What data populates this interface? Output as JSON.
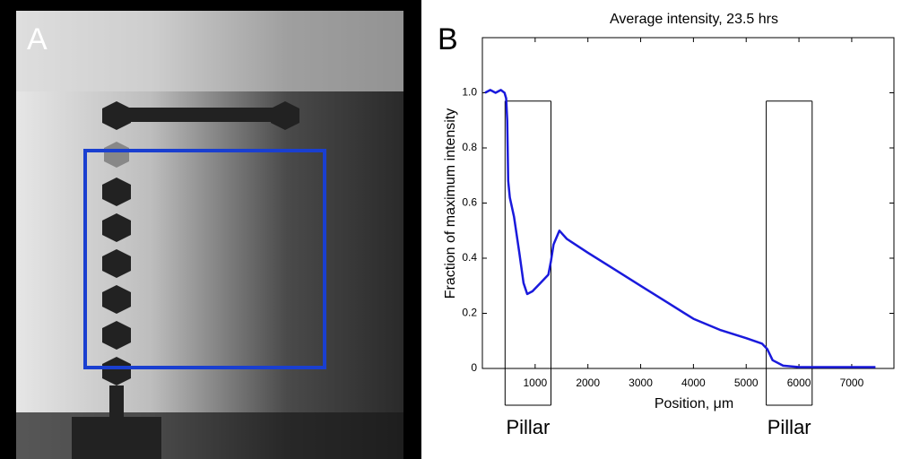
{
  "panel_labels": [
    "A",
    "B"
  ],
  "chart_data": {
    "type": "line",
    "title": "Average intensity, 23.5 hrs",
    "xlabel": "Position, μm",
    "ylabel": "Fraction of maximum intensity",
    "x": [
      50,
      150,
      250,
      350,
      420,
      450,
      470,
      490,
      520,
      600,
      700,
      780,
      850,
      950,
      1100,
      1250,
      1300,
      1350,
      1460,
      1600,
      2000,
      2500,
      3000,
      3500,
      4000,
      4500,
      5000,
      5300,
      5400,
      5500,
      5700,
      6000,
      7000,
      7450
    ],
    "values": [
      1.0,
      1.01,
      1.0,
      1.01,
      1.0,
      0.98,
      0.9,
      0.68,
      0.62,
      0.55,
      0.42,
      0.31,
      0.27,
      0.28,
      0.31,
      0.34,
      0.39,
      0.45,
      0.5,
      0.47,
      0.42,
      0.36,
      0.3,
      0.24,
      0.18,
      0.14,
      0.11,
      0.09,
      0.07,
      0.03,
      0.01,
      0.005,
      0.005,
      0.005
    ],
    "color": "#1a1adc",
    "xlim": [
      0,
      7800
    ],
    "ylim": [
      0,
      1.2
    ],
    "xticks": [
      1000,
      2000,
      3000,
      4000,
      5000,
      6000,
      7000
    ],
    "yticks": [
      0,
      0.2,
      0.4,
      0.6,
      0.8,
      {
        "value": 1,
        "label": "1.0"
      }
    ],
    "grid": false,
    "annotations": [
      {
        "label": "Pillar",
        "x0": 430,
        "x1": 1300,
        "y1": 0.97
      },
      {
        "label": "Pillar",
        "x0": 5380,
        "x1": 6250,
        "y1": 0.97
      }
    ]
  }
}
